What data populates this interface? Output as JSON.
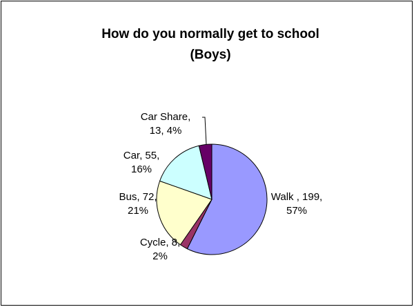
{
  "chart_data": {
    "type": "pie",
    "title": [
      "How do you normally get to school",
      "(Boys)"
    ],
    "values": [
      199,
      8,
      72,
      55,
      13
    ],
    "value_labels": [
      [
        "Walk , 199,",
        "57%"
      ],
      [
        "Cycle, 8,",
        "2%"
      ],
      [
        "Bus, 72,",
        "21%"
      ],
      [
        "Car, 55,",
        "16%"
      ],
      [
        "Car Share,",
        "13, 4%"
      ]
    ],
    "colors": [
      "#9999ff",
      "#993366",
      "#ffffcc",
      "#ccffff",
      "#660066"
    ],
    "start_angle": 0,
    "direction": "clockwise"
  }
}
